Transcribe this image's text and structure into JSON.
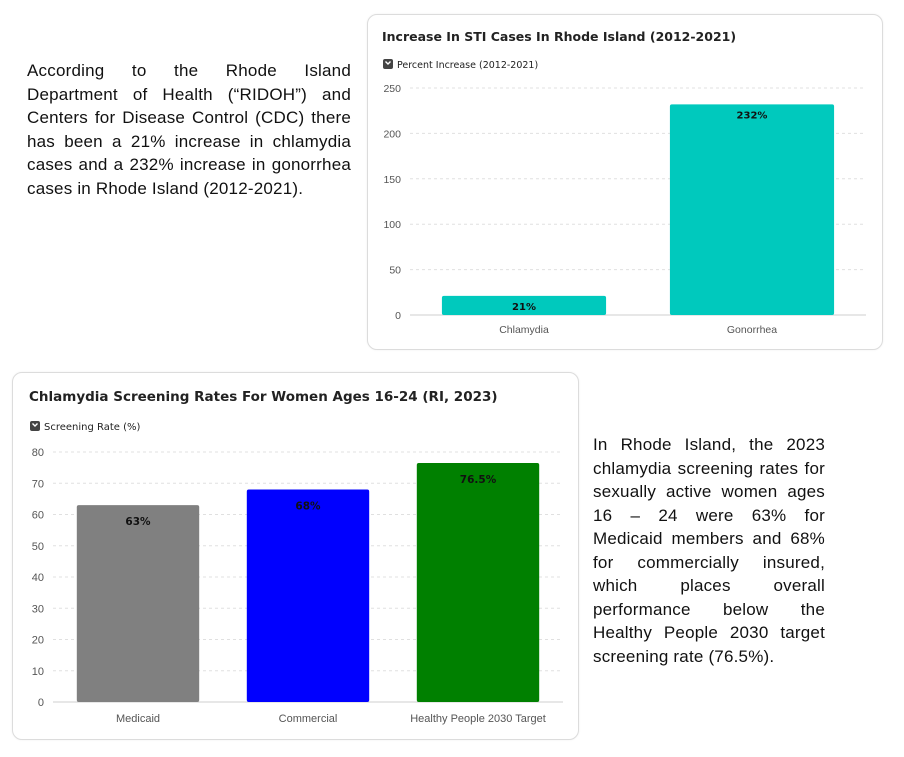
{
  "paragraphs": {
    "top": "According to the Rhode Island Department of Health (“RIDOH”) and Centers for Disease Control (CDC) there has been a 21% increase in chlamydia cases and a 232% increase in gonorrhea cases in Rhode Island (2012-2021).",
    "bottom": "In Rhode Island, the 2023 chlamydia screening rates for sexually active women ages 16 – 24 were 63% for Medicaid members and 68% for commercially insured, which places overall performance below the Healthy People 2030 target screening rate (76.5%)."
  },
  "chart_data": [
    {
      "type": "bar",
      "title": "Increase In STI Cases In Rhode Island (2012-2021)",
      "legend": "Percent Increase (2012-2021)",
      "legend_placement": "top-left",
      "grid": true,
      "categories": [
        "Chlamydia",
        "Gonorrhea"
      ],
      "values": [
        21,
        232
      ],
      "data_labels": [
        "21%",
        "232%"
      ],
      "colors": [
        "#00c9bd",
        "#00c9bd"
      ],
      "ylim": [
        0,
        250
      ],
      "yticks": [
        0,
        50,
        100,
        150,
        200,
        250
      ],
      "xlabel": "",
      "ylabel": ""
    },
    {
      "type": "bar",
      "title": "Chlamydia Screening Rates For Women Ages 16-24 (RI, 2023)",
      "legend": "Screening Rate (%)",
      "legend_placement": "top-left",
      "grid": true,
      "categories": [
        "Medicaid",
        "Commercial",
        "Healthy People 2030 Target"
      ],
      "values": [
        63,
        68,
        76.5
      ],
      "data_labels": [
        "63%",
        "68%",
        "76.5%"
      ],
      "colors": [
        "#808080",
        "#0000ff",
        "#008000"
      ],
      "ylim": [
        0,
        80
      ],
      "yticks": [
        0,
        10,
        20,
        30,
        40,
        50,
        60,
        70,
        80
      ],
      "xlabel": "",
      "ylabel": ""
    }
  ]
}
